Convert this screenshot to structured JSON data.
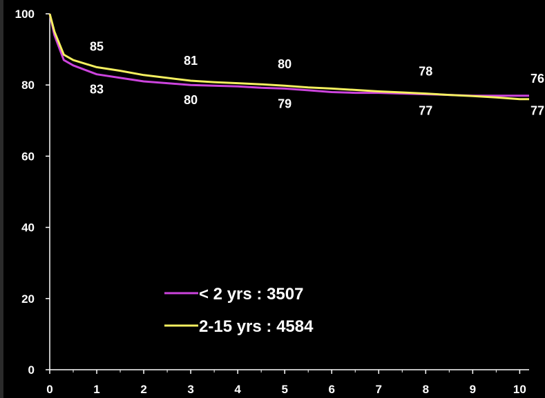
{
  "chart_data": {
    "type": "line",
    "xlim": [
      0,
      10.2
    ],
    "ylim": [
      0,
      100
    ],
    "x_ticks": [
      0,
      1,
      2,
      3,
      4,
      5,
      6,
      7,
      8,
      9,
      10
    ],
    "y_ticks": [
      0,
      20,
      40,
      60,
      80,
      100
    ],
    "x_tick_labels": [
      "0",
      "1",
      "2",
      "3",
      "4",
      "5",
      "6",
      "7",
      "8",
      "9",
      "10"
    ],
    "y_tick_labels": [
      "0",
      "20",
      "40",
      "60",
      "80",
      "100"
    ],
    "grid": false,
    "legend": "bottom-left",
    "series": [
      {
        "name": "< 2 yrs : 3507",
        "color": "#cc44dd",
        "x": [
          0,
          0.1,
          0.3,
          0.5,
          1,
          1.5,
          2,
          2.5,
          3,
          3.5,
          4,
          4.5,
          5,
          5.5,
          6,
          6.5,
          7,
          7.5,
          8,
          8.5,
          9,
          9.5,
          10,
          10.2
        ],
        "y": [
          100,
          94,
          87,
          85.5,
          83,
          82,
          81,
          80.5,
          80,
          79.8,
          79.6,
          79.2,
          79,
          78.5,
          78,
          77.8,
          77.8,
          77.6,
          77.4,
          77.2,
          77,
          77,
          77,
          77
        ]
      },
      {
        "name": "2-15 yrs : 4584",
        "color": "#f5f060",
        "x": [
          0,
          0.1,
          0.3,
          0.5,
          1,
          1.5,
          2,
          2.5,
          3,
          3.5,
          4,
          4.5,
          5,
          5.5,
          6,
          6.5,
          7,
          7.5,
          8,
          8.5,
          9,
          9.5,
          10,
          10.2
        ],
        "y": [
          100,
          95,
          88.5,
          87,
          85,
          84,
          82.8,
          82,
          81.2,
          80.8,
          80.5,
          80.2,
          79.8,
          79.3,
          79,
          78.6,
          78.2,
          77.9,
          77.6,
          77.2,
          76.9,
          76.5,
          76,
          76
        ]
      }
    ],
    "data_labels": [
      {
        "x": 1,
        "y": 85,
        "text": "85",
        "pos": "above"
      },
      {
        "x": 1,
        "y": 83,
        "text": "83",
        "pos": "below"
      },
      {
        "x": 3,
        "y": 81,
        "text": "81",
        "pos": "above"
      },
      {
        "x": 3,
        "y": 80,
        "text": "80",
        "pos": "below"
      },
      {
        "x": 5,
        "y": 80,
        "text": "80",
        "pos": "above"
      },
      {
        "x": 5,
        "y": 79,
        "text": "79",
        "pos": "below"
      },
      {
        "x": 8,
        "y": 78,
        "text": "78",
        "pos": "above"
      },
      {
        "x": 8,
        "y": 77,
        "text": "77",
        "pos": "below"
      },
      {
        "x": 10.2,
        "y": 76,
        "text": "76",
        "pos": "above"
      },
      {
        "x": 10.2,
        "y": 77,
        "text": "77",
        "pos": "below"
      }
    ]
  }
}
